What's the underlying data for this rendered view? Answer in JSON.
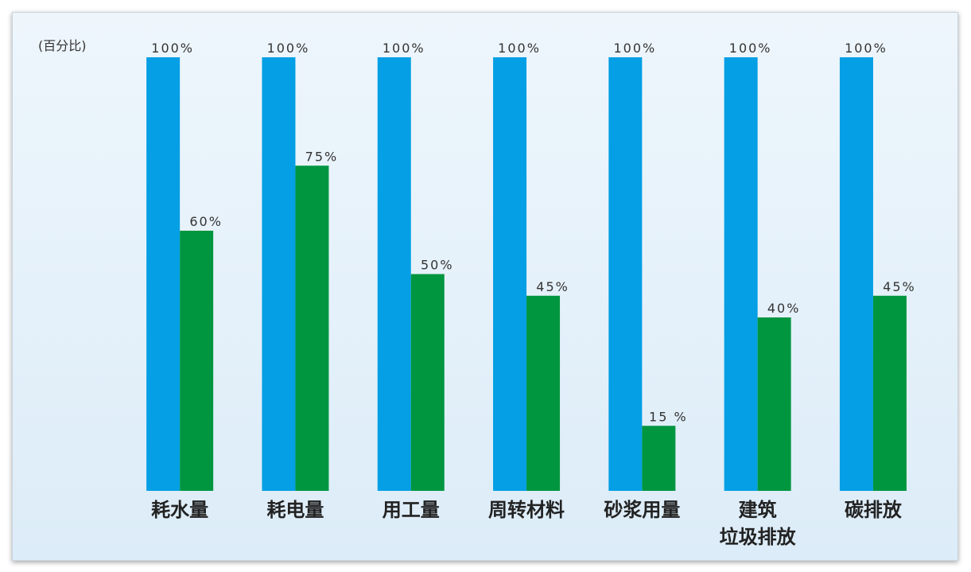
{
  "chart_data": {
    "type": "bar",
    "y_label": "(百分比)",
    "categories": [
      "耗水量",
      "耗电量",
      "用工量",
      "周转材料",
      "砂浆用量",
      "建筑\n垃圾排放",
      "碳排放"
    ],
    "series": [
      {
        "color": "#049fe4",
        "values": [
          100,
          100,
          100,
          100,
          100,
          100,
          100
        ],
        "value_labels": [
          "100%",
          "100%",
          "100%",
          "100%",
          "100%",
          "100%",
          "100%"
        ]
      },
      {
        "color": "#009640",
        "values": [
          60,
          75,
          50,
          45,
          15,
          40,
          45
        ],
        "value_labels": [
          "60%",
          "75%",
          "50%",
          "45%",
          "15 %",
          "40%",
          "45%"
        ]
      }
    ],
    "ylim": [
      0,
      100
    ]
  }
}
